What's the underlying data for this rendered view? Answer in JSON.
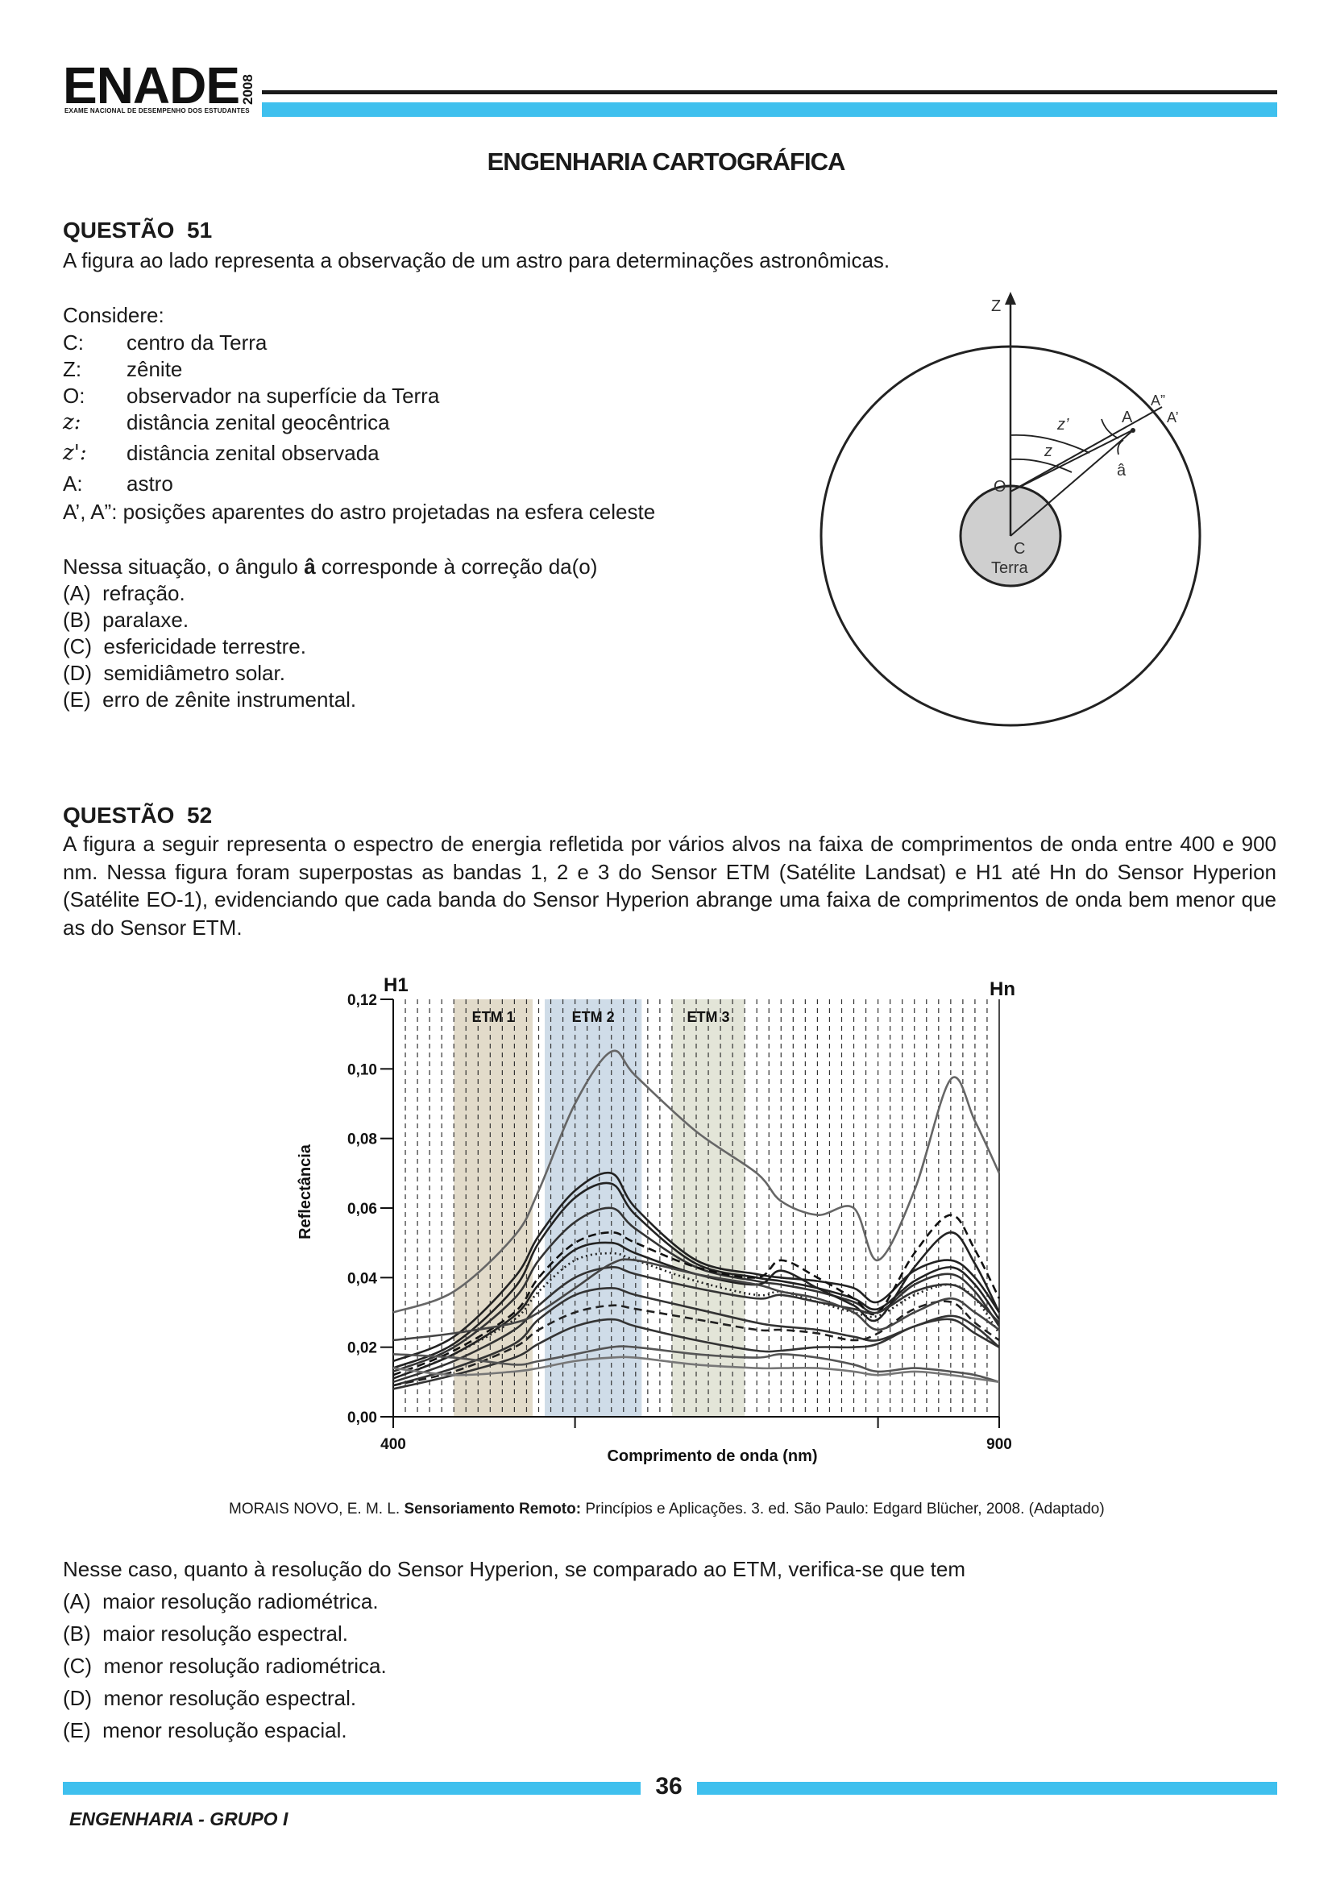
{
  "header": {
    "logo_text": "ENADE",
    "logo_year": "2008",
    "logo_subtitle": "EXAME NACIONAL DE DESEMPENHO DOS ESTUDANTES",
    "accent_color": "#3fc0ee"
  },
  "title": "ENGENHARIA CARTOGRÁFICA",
  "q51": {
    "heading": "QUESTÃO  51",
    "intro": "A figura ao lado representa a observação de um astro para determinações astronômicas.",
    "consider": "Considere:",
    "defs": [
      {
        "term": "C:",
        "desc": "centro da Terra"
      },
      {
        "term": "Z:",
        "desc": "zênite"
      },
      {
        "term": "O:",
        "desc": "observador na superfície da Terra"
      },
      {
        "term": "z:",
        "desc": "distância zenital geocêntrica"
      },
      {
        "term": "z':",
        "desc": "distância zenital observada"
      },
      {
        "term": "A:",
        "desc": "astro"
      }
    ],
    "def_last": "A’, A”: posições aparentes do astro projetadas na esfera celeste",
    "stem_before": "Nessa situação, o ângulo ",
    "stem_bold": "â",
    "stem_after": " corresponde à correção da(o)",
    "options": [
      "(A)  refração.",
      "(B)  paralaxe.",
      "(C)  esfericidade terrestre.",
      "(D)  semidiâmetro solar.",
      "(E)  erro de zênite instrumental."
    ],
    "figure": {
      "z_label": "Z",
      "o_label": "O",
      "c_label": "C",
      "earth_label": "Terra",
      "a_label": "A",
      "a1_label": "A’",
      "a2_label": "A”",
      "angle_label": "â",
      "zz_label": "z",
      "zp_label": "z’"
    }
  },
  "q52": {
    "heading": "QUESTÃO  52",
    "intro": "A figura a seguir representa o espectro de energia refletida por vários alvos na faixa de comprimentos de onda entre 400 e 900 nm. Nessa figura foram superpostas as bandas 1, 2 e 3 do Sensor ETM (Satélite Landsat) e H1 até Hn do Sensor Hyperion (Satélite EO-1), evidenciando que cada banda do Sensor Hyperion  abrange uma faixa de comprimentos de onda bem menor que as do Sensor ETM.",
    "citation_author": "MORAIS NOVO, E. M. L. ",
    "citation_title": "Sensoriamento Remoto:",
    "citation_rest": " Princípios e Aplicações. 3. ed. São Paulo: Edgard Blücher, 2008. (Adaptado)",
    "stem": "Nesse caso, quanto à resolução do Sensor Hyperion, se comparado ao ETM, verifica-se que tem",
    "options": [
      "(A)  maior resolução radiométrica.",
      "(B)  maior resolução espectral.",
      "(C)  menor resolução radiométrica.",
      "(D)  menor resolução espectral.",
      "(E)  menor resolução espacial."
    ]
  },
  "chart_data": {
    "type": "line",
    "title": "",
    "xlabel": "Comprimento de onda (nm)",
    "ylabel": "Reflectância",
    "xlim": [
      400,
      900
    ],
    "ylim": [
      0,
      0.12
    ],
    "x_tick_labels": [
      "400",
      "900"
    ],
    "y_tick_labels": [
      "0,00",
      "0,02",
      "0,04",
      "0,06",
      "0,08",
      "0,10",
      "0,12"
    ],
    "y_ticks": [
      0,
      0.02,
      0.04,
      0.06,
      0.08,
      0.1,
      0.12
    ],
    "bands": [
      {
        "name": "ETM 1",
        "range": [
          450,
          515
        ],
        "color": "#d8cfb8"
      },
      {
        "name": "ETM 2",
        "range": [
          525,
          605
        ],
        "color": "#bfd0e0"
      },
      {
        "name": "ETM 3",
        "range": [
          630,
          690
        ],
        "color": "#d9dccb"
      }
    ],
    "hyperion_first": "H1",
    "hyperion_last": "Hn",
    "hyperion_band_step_nm": 10,
    "x": [
      400,
      450,
      500,
      520,
      550,
      580,
      600,
      650,
      700,
      720,
      750,
      780,
      800,
      830,
      860,
      880,
      900
    ],
    "series": [
      {
        "values": [
          0.03,
          0.036,
          0.052,
          0.065,
          0.09,
          0.105,
          0.098,
          0.082,
          0.07,
          0.062,
          0.058,
          0.06,
          0.045,
          0.065,
          0.097,
          0.085,
          0.07
        ],
        "color": "#666666",
        "dash": false
      },
      {
        "values": [
          0.016,
          0.023,
          0.04,
          0.052,
          0.065,
          0.07,
          0.06,
          0.045,
          0.041,
          0.04,
          0.039,
          0.037,
          0.033,
          0.042,
          0.045,
          0.04,
          0.03
        ],
        "color": "#222222",
        "dash": false
      },
      {
        "values": [
          0.014,
          0.021,
          0.037,
          0.05,
          0.063,
          0.067,
          0.058,
          0.044,
          0.04,
          0.039,
          0.037,
          0.034,
          0.031,
          0.039,
          0.043,
          0.038,
          0.028
        ],
        "color": "#222222",
        "dash": false
      },
      {
        "values": [
          0.013,
          0.02,
          0.034,
          0.045,
          0.056,
          0.06,
          0.054,
          0.043,
          0.039,
          0.038,
          0.036,
          0.033,
          0.03,
          0.038,
          0.041,
          0.036,
          0.026
        ],
        "color": "#333333",
        "dash": false
      },
      {
        "values": [
          0.012,
          0.019,
          0.03,
          0.04,
          0.05,
          0.053,
          0.05,
          0.043,
          0.04,
          0.045,
          0.04,
          0.034,
          0.03,
          0.047,
          0.058,
          0.048,
          0.034
        ],
        "color": "#111111",
        "dash": true
      },
      {
        "values": [
          0.011,
          0.018,
          0.029,
          0.038,
          0.048,
          0.05,
          0.047,
          0.041,
          0.038,
          0.042,
          0.037,
          0.032,
          0.028,
          0.043,
          0.053,
          0.044,
          0.03
        ],
        "color": "#222222",
        "dash": false
      },
      {
        "values": [
          0.011,
          0.018,
          0.028,
          0.036,
          0.045,
          0.047,
          0.045,
          0.039,
          0.035,
          0.036,
          0.033,
          0.03,
          0.029,
          0.035,
          0.038,
          0.034,
          0.024
        ],
        "color": "#222222",
        "dash": "dot"
      },
      {
        "values": [
          0.01,
          0.016,
          0.025,
          0.032,
          0.04,
          0.043,
          0.041,
          0.037,
          0.034,
          0.035,
          0.033,
          0.031,
          0.03,
          0.036,
          0.038,
          0.034,
          0.027
        ],
        "color": "#333333",
        "dash": false
      },
      {
        "values": [
          0.009,
          0.014,
          0.021,
          0.028,
          0.035,
          0.037,
          0.035,
          0.031,
          0.027,
          0.026,
          0.025,
          0.023,
          0.022,
          0.026,
          0.029,
          0.026,
          0.02
        ],
        "color": "#333333",
        "dash": false
      },
      {
        "values": [
          0.009,
          0.013,
          0.02,
          0.025,
          0.03,
          0.032,
          0.031,
          0.028,
          0.025,
          0.025,
          0.024,
          0.022,
          0.024,
          0.031,
          0.033,
          0.027,
          0.022
        ],
        "color": "#222222",
        "dash": true
      },
      {
        "values": [
          0.008,
          0.012,
          0.017,
          0.021,
          0.026,
          0.028,
          0.026,
          0.022,
          0.019,
          0.019,
          0.02,
          0.02,
          0.021,
          0.026,
          0.028,
          0.024,
          0.02
        ],
        "color": "#333333",
        "dash": false
      },
      {
        "values": [
          0.018,
          0.017,
          0.015,
          0.016,
          0.018,
          0.02,
          0.02,
          0.018,
          0.017,
          0.018,
          0.017,
          0.015,
          0.013,
          0.014,
          0.013,
          0.012,
          0.01
        ],
        "color": "#555555",
        "dash": false
      },
      {
        "values": [
          0.022,
          0.024,
          0.027,
          0.03,
          0.037,
          0.044,
          0.045,
          0.041,
          0.038,
          0.036,
          0.034,
          0.03,
          0.025,
          0.03,
          0.034,
          0.03,
          0.025
        ],
        "color": "#444444",
        "dash": false
      },
      {
        "values": [
          0.014,
          0.012,
          0.013,
          0.014,
          0.016,
          0.017,
          0.017,
          0.015,
          0.014,
          0.014,
          0.014,
          0.013,
          0.012,
          0.013,
          0.012,
          0.011,
          0.01
        ],
        "color": "#777777",
        "dash": false
      }
    ]
  },
  "footer": {
    "page_number": "36",
    "group": "ENGENHARIA - GRUPO I"
  }
}
